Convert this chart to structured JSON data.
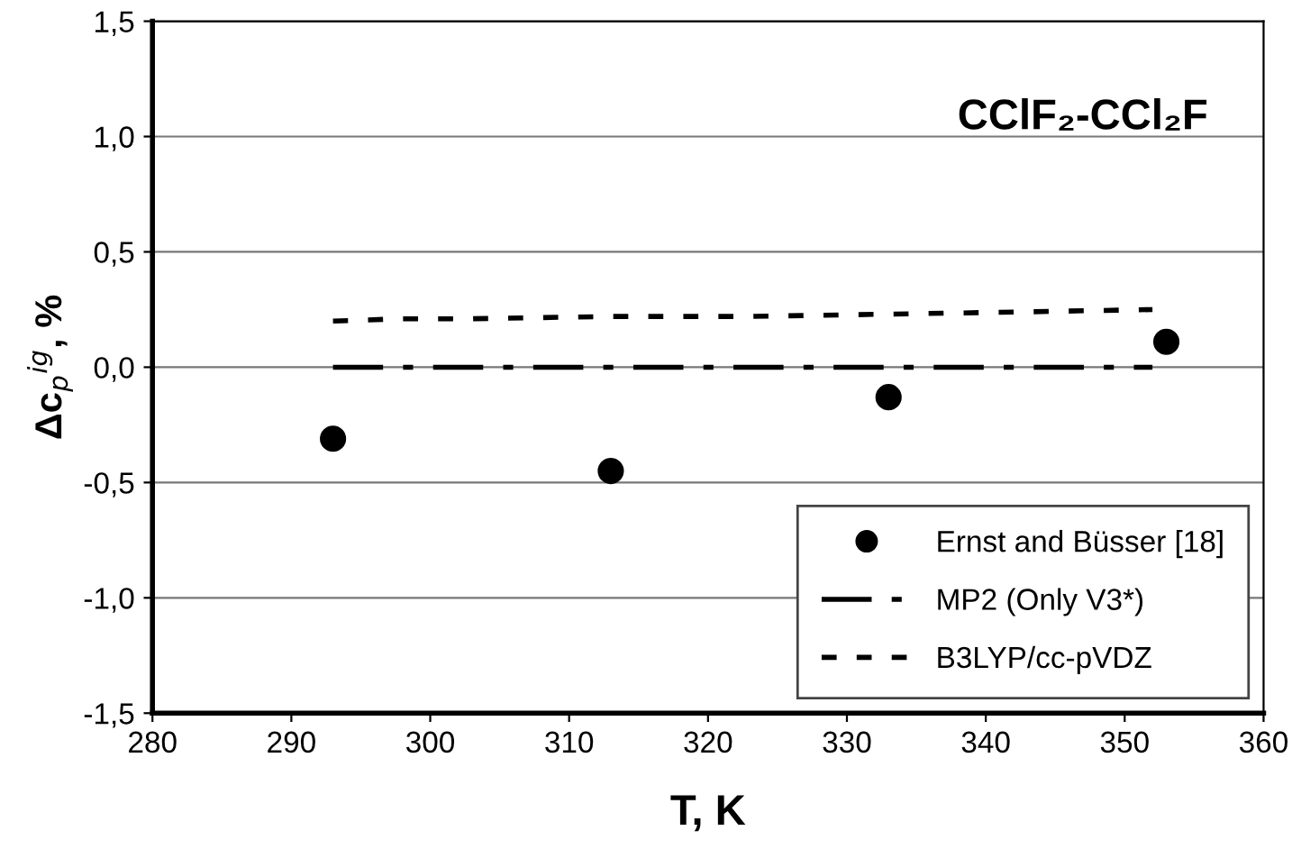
{
  "chart_data": {
    "type": "scatter",
    "title": "CClF₂-CCl₂F",
    "xlabel": "T, K",
    "ylabel": "Δc$_{p}$$^{ig}$, %",
    "xlim": [
      280,
      360
    ],
    "xticks": [
      280,
      290,
      300,
      310,
      320,
      330,
      340,
      350,
      360
    ],
    "ylim": [
      -1.5,
      1.5
    ],
    "yticks": [
      {
        "value": -1.5,
        "label": "-1,5"
      },
      {
        "value": -1.0,
        "label": "-1,0"
      },
      {
        "value": -0.5,
        "label": "-0,5"
      },
      {
        "value": 0.0,
        "label": "0,0"
      },
      {
        "value": 0.5,
        "label": "0,5"
      },
      {
        "value": 1.0,
        "label": "1,0"
      },
      {
        "value": 1.5,
        "label": "1,5"
      }
    ],
    "grid": "y",
    "legend": "bottom right",
    "series": [
      {
        "name": "Ernst and Büsser [18]",
        "color": "#000000",
        "marker": "circle",
        "x": [
          293,
          313,
          333,
          353
        ],
        "values": [
          -0.31,
          -0.45,
          -0.13,
          0.11
        ]
      },
      {
        "name": "MP2 (Only V3*)",
        "type": "line",
        "color": "#000000",
        "line_style": "dashdot",
        "x": [
          293,
          352
        ],
        "values": [
          0.0,
          0.0
        ]
      },
      {
        "name": "B3LYP/cc-pVDZ",
        "type": "line",
        "color": "#000000",
        "line_style": "dotted",
        "x": [
          293,
          298,
          303,
          313,
          323,
          333,
          343,
          352
        ],
        "values": [
          0.2,
          0.21,
          0.21,
          0.22,
          0.22,
          0.23,
          0.24,
          0.25
        ]
      }
    ]
  }
}
